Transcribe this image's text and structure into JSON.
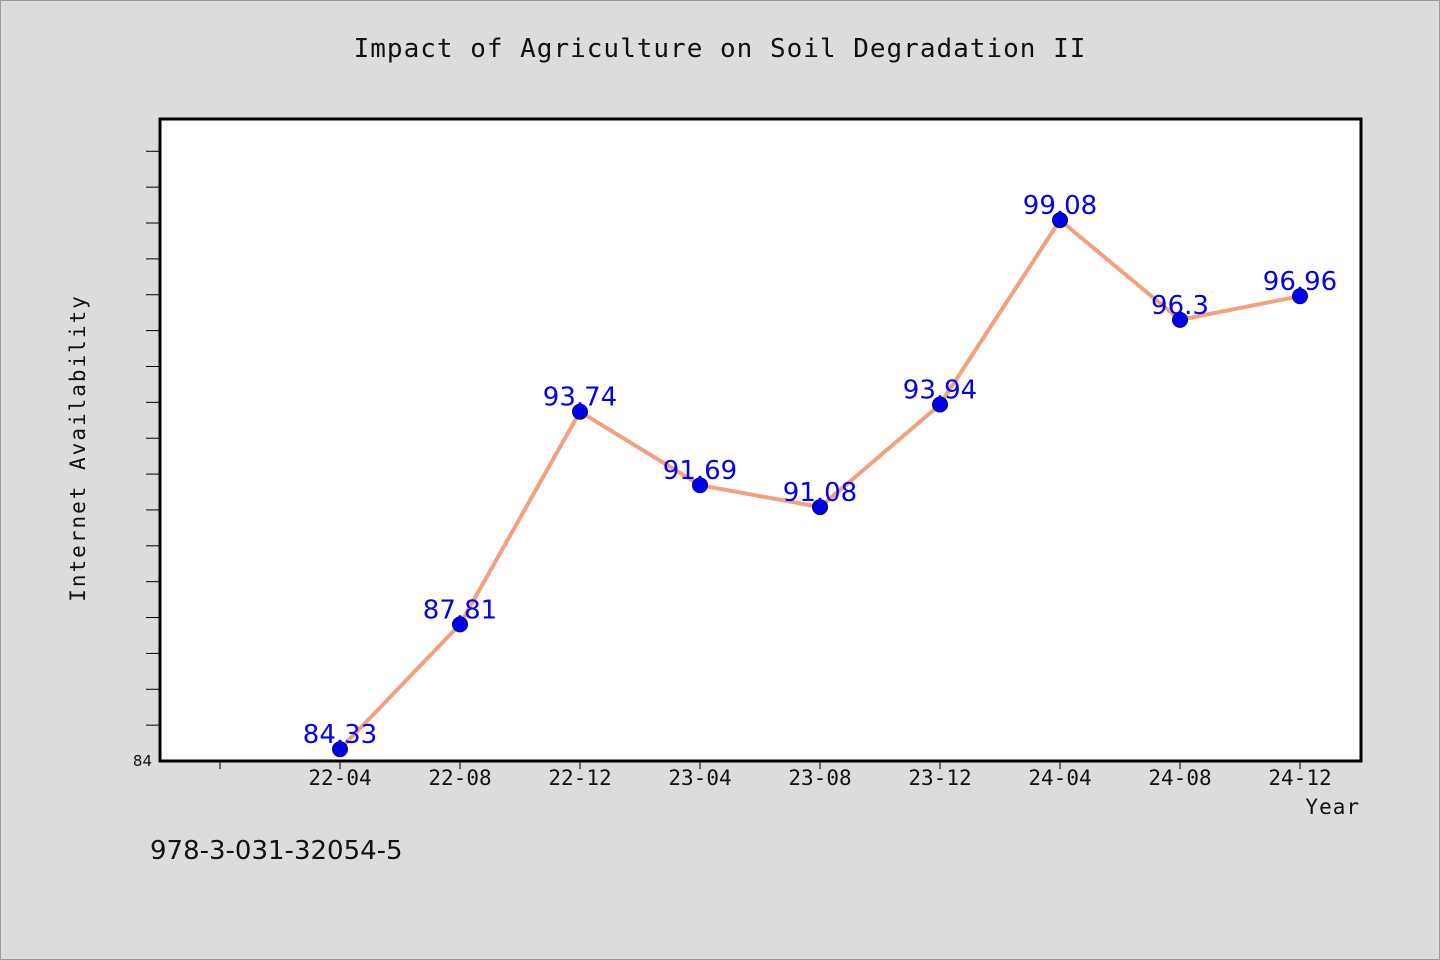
{
  "chart_data": {
    "type": "line",
    "title": "Impact of Agriculture on Soil Degradation II",
    "xlabel": "Year",
    "ylabel": "Internet Availability",
    "categories": [
      "22-04",
      "22-08",
      "22-12",
      "23-04",
      "23-08",
      "23-12",
      "24-04",
      "24-08",
      "24-12"
    ],
    "series": [
      {
        "values": [
          84.33,
          87.81,
          93.74,
          91.69,
          91.08,
          93.94,
          99.08,
          96.3,
          96.96
        ]
      }
    ],
    "data_labels": [
      "84.33",
      "87.81",
      "93.74",
      "91.69",
      "91.08",
      "93.94",
      "99.08",
      "96.3",
      "96.96"
    ],
    "ylim": [
      84,
      101.9
    ],
    "y_tick_labels": [
      "84"
    ],
    "grid": false,
    "colors": {
      "line": "#f4a07e",
      "marker": "#0000ee",
      "marker_edge": "#000080",
      "label": "#0000ee",
      "background": "#dcdcdc",
      "plot_background": "#ffffff"
    }
  },
  "footnote": "978-3-031-32054-5"
}
